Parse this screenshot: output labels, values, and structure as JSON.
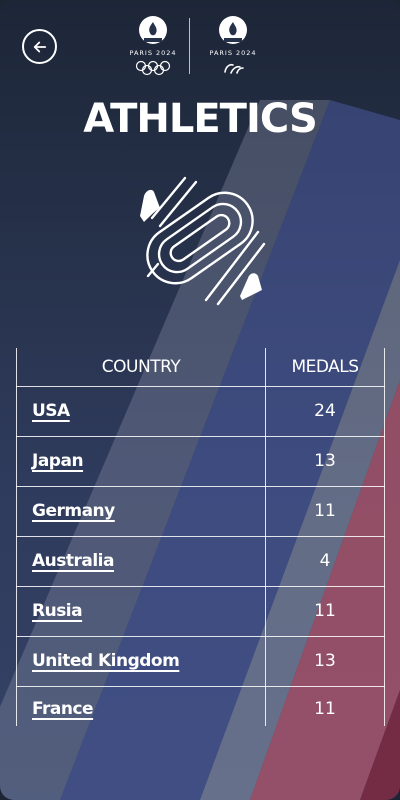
{
  "header": {
    "back_icon": "arrow-left-icon",
    "olympic_logo_caption": "PARIS 2024",
    "paralympic_logo_caption": "PARIS 2024"
  },
  "page": {
    "title": "ATHLETICS",
    "sport_icon": "athletics-track-icon"
  },
  "table": {
    "headers": {
      "country": "COUNTRY",
      "medals": "MEDALS"
    },
    "rows": [
      {
        "country": "USA",
        "medals": "24"
      },
      {
        "country": "Japan",
        "medals": "13"
      },
      {
        "country": "Germany",
        "medals": "11"
      },
      {
        "country": "Australia",
        "medals": "4"
      },
      {
        "country": "Rusia",
        "medals": "11"
      },
      {
        "country": "United Kingdom",
        "medals": "13"
      },
      {
        "country": "France",
        "medals": "11"
      }
    ]
  },
  "colors": {
    "background_top": "#1d2637",
    "background_bottom": "#344266",
    "stripe_blue": "#4a5a9c",
    "stripe_grey": "#8c93a8",
    "stripe_red": "#b4556a"
  }
}
